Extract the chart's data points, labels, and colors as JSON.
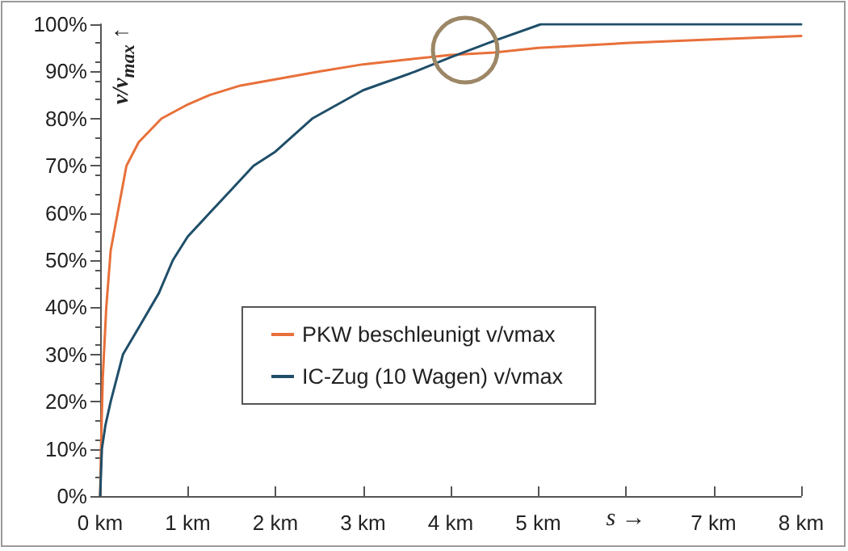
{
  "chart_data": {
    "type": "line",
    "xlabel": "s →",
    "ylabel": "v/v$_{max}$ ↑",
    "xlim": [
      0,
      8
    ],
    "ylim": [
      0,
      100
    ],
    "xticks": [
      {
        "value": 0,
        "label": "0 km"
      },
      {
        "value": 1,
        "label": "1 km"
      },
      {
        "value": 2,
        "label": "2 km"
      },
      {
        "value": 3,
        "label": "3 km"
      },
      {
        "value": 4,
        "label": "4 km"
      },
      {
        "value": 5,
        "label": "5 km"
      },
      {
        "value": 6,
        "label": null
      },
      {
        "value": 7,
        "label": "7 km"
      },
      {
        "value": 8,
        "label": "8 km"
      }
    ],
    "yticks": [
      {
        "value": 0,
        "label": "0%"
      },
      {
        "value": 10,
        "label": "10%"
      },
      {
        "value": 20,
        "label": "20%"
      },
      {
        "value": 30,
        "label": "30%"
      },
      {
        "value": 40,
        "label": "40%"
      },
      {
        "value": 50,
        "label": "50%"
      },
      {
        "value": 60,
        "label": "60%"
      },
      {
        "value": 70,
        "label": "70%"
      },
      {
        "value": 80,
        "label": "80%"
      },
      {
        "value": 90,
        "label": "90%"
      },
      {
        "value": 100,
        "label": "100%"
      }
    ],
    "grid": false,
    "legend": "bottom",
    "marker": "none",
    "line_style": "solid",
    "series": [
      {
        "name": "PKW beschleunigt v/vmax",
        "color": "#e8703a",
        "x": [
          0,
          0.01,
          0.03,
          0.07,
          0.12,
          0.2,
          0.3,
          0.44,
          0.7,
          1,
          1.25,
          1.6,
          2.05,
          2.5,
          3,
          3.5,
          4,
          4.5,
          5,
          6,
          7,
          8
        ],
        "values": [
          0,
          10,
          25,
          40,
          52,
          60,
          70,
          75,
          80,
          83,
          85,
          87,
          88.5,
          90,
          91.5,
          92.5,
          93.5,
          94,
          95,
          96,
          96.8,
          97.5
        ]
      },
      {
        "name": "IC-Zug (10 Wagen) v/vmax",
        "color": "#1f4e69",
        "x": [
          0,
          0.02,
          0.06,
          0.12,
          0.26,
          0.45,
          0.67,
          0.83,
          1,
          1.25,
          1.5,
          1.75,
          2,
          2.42,
          3,
          3.6,
          4,
          4.5,
          5.03,
          6,
          7,
          8
        ],
        "values": [
          0,
          10,
          15,
          20,
          30,
          36,
          43,
          50,
          55,
          60,
          65,
          70,
          73,
          80,
          86,
          90,
          93,
          96.5,
          100,
          100,
          100,
          100
        ]
      }
    ]
  }
}
